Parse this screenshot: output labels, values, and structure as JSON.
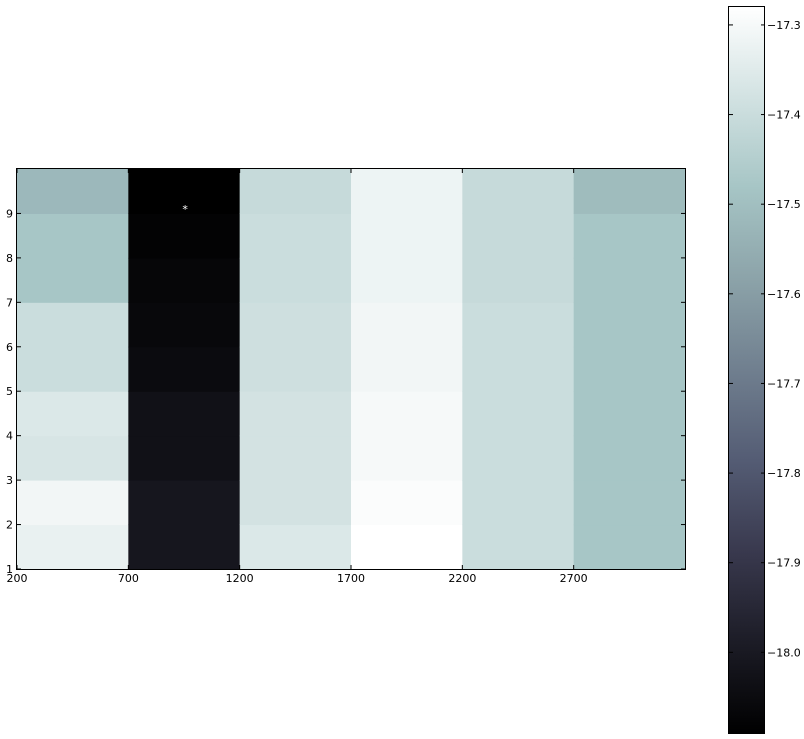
{
  "chart_data": {
    "type": "heatmap",
    "colormap": "bone",
    "x_tick_labels": [
      "200",
      "700",
      "1200",
      "1700",
      "2200",
      "2700"
    ],
    "x_edges": [
      200,
      700,
      1200,
      1700,
      2200,
      2700,
      3200
    ],
    "xlim": [
      200,
      3200
    ],
    "y_tick_labels": [
      "1",
      "2",
      "3",
      "4",
      "5",
      "6",
      "7",
      "8",
      "9"
    ],
    "y_edges": [
      1,
      2,
      3,
      4,
      5,
      6,
      7,
      8,
      9,
      10
    ],
    "ylim": [
      1,
      10
    ],
    "columns": [
      {
        "x_start": 200,
        "x_end": 700,
        "values": [
          -17.33,
          -17.31,
          -17.37,
          -17.36,
          -17.4,
          -17.4,
          -17.48,
          -17.48,
          -17.52
        ]
      },
      {
        "x_start": 700,
        "x_end": 1200,
        "values": [
          -18.01,
          -18.01,
          -18.03,
          -18.03,
          -18.05,
          -18.06,
          -18.07,
          -18.08,
          -18.09
        ]
      },
      {
        "x_start": 1200,
        "x_end": 1700,
        "values": [
          -17.36,
          -17.38,
          -17.38,
          -17.38,
          -17.39,
          -17.39,
          -17.4,
          -17.4,
          -17.41
        ]
      },
      {
        "x_start": 1700,
        "x_end": 2200,
        "values": [
          -17.28,
          -17.29,
          -17.3,
          -17.3,
          -17.31,
          -17.31,
          -17.32,
          -17.32,
          -17.32
        ]
      },
      {
        "x_start": 2200,
        "x_end": 2700,
        "values": [
          -17.4,
          -17.4,
          -17.4,
          -17.4,
          -17.4,
          -17.4,
          -17.41,
          -17.41,
          -17.41
        ]
      },
      {
        "x_start": 2700,
        "x_end": 3200,
        "values": [
          -17.48,
          -17.48,
          -17.48,
          -17.48,
          -17.48,
          -17.48,
          -17.48,
          -17.48,
          -17.51
        ]
      }
    ],
    "marker": {
      "symbol": "*",
      "x": 955,
      "y": 9.1,
      "color": "#ffffff"
    },
    "colorbar": {
      "vmin": -18.09,
      "vmax": -17.28,
      "ticks": [
        -17.3,
        -17.4,
        -17.5,
        -17.6,
        -17.7,
        -17.8,
        -17.9,
        -18.0
      ],
      "tick_labels": [
        "−17.3",
        "−17.4",
        "−17.5",
        "−17.6",
        "−17.7",
        "−17.8",
        "−17.9",
        "−18.0"
      ]
    },
    "grid": false,
    "title": "",
    "xlabel": "",
    "ylabel": ""
  }
}
